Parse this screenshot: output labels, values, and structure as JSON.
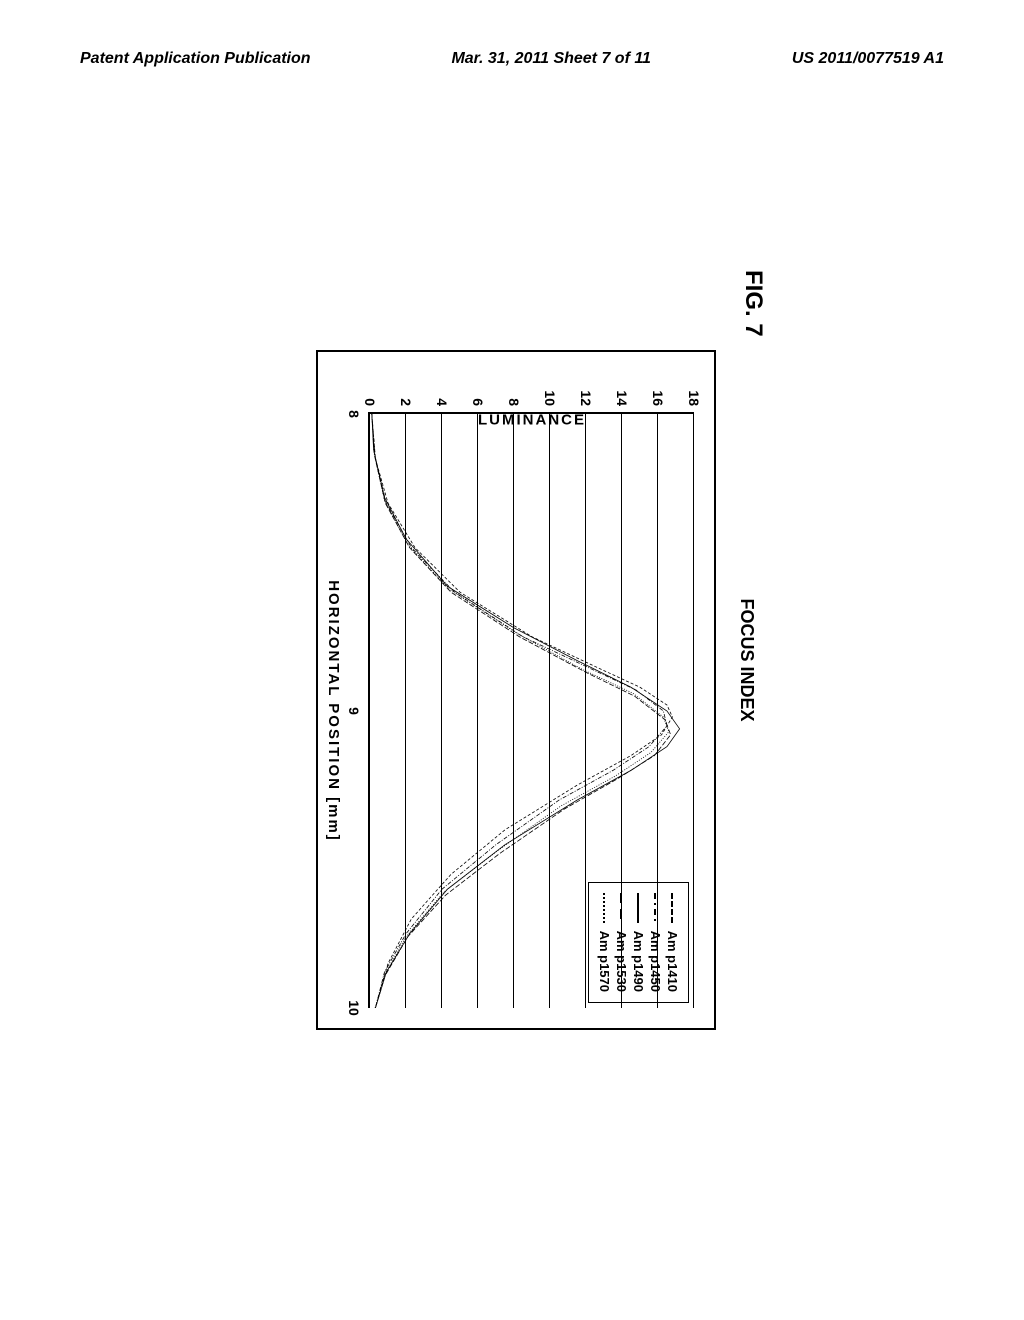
{
  "header": {
    "left": "Patent Application Publication",
    "center": "Mar. 31, 2011  Sheet 7 of 11",
    "right": "US 2011/0077519 A1"
  },
  "figure": {
    "label": "FIG. 7",
    "title": "FOCUS INDEX",
    "y_axis_label": "LUMINANCE",
    "x_axis_label": "HORIZONTAL POSITION [mm]",
    "y_ticks": [
      0,
      2,
      4,
      6,
      8,
      10,
      12,
      14,
      16,
      18
    ],
    "y_min": 0,
    "y_max": 18,
    "x_ticks": [
      8,
      9,
      10
    ],
    "x_min": 8,
    "x_max": 10,
    "legend": [
      {
        "label": "Am p1410",
        "style": "dash"
      },
      {
        "label": "Am p1450",
        "style": "dashdot"
      },
      {
        "label": "Am p1490",
        "style": "solid"
      },
      {
        "label": "Am p1530",
        "style": "longdash"
      },
      {
        "label": "Am p1570",
        "style": "dotted"
      }
    ],
    "curves": [
      {
        "style": "dash",
        "points": [
          {
            "x": 8.0,
            "y": 0.1
          },
          {
            "x": 8.15,
            "y": 0.3
          },
          {
            "x": 8.3,
            "y": 1.0
          },
          {
            "x": 8.45,
            "y": 2.5
          },
          {
            "x": 8.6,
            "y": 5.0
          },
          {
            "x": 8.75,
            "y": 9.0
          },
          {
            "x": 8.85,
            "y": 12.5
          },
          {
            "x": 8.92,
            "y": 15.0
          },
          {
            "x": 8.98,
            "y": 16.5
          },
          {
            "x": 9.02,
            "y": 16.8
          },
          {
            "x": 9.08,
            "y": 16.2
          },
          {
            "x": 9.15,
            "y": 14.5
          },
          {
            "x": 9.25,
            "y": 11.5
          },
          {
            "x": 9.4,
            "y": 7.5
          },
          {
            "x": 9.55,
            "y": 4.5
          },
          {
            "x": 9.7,
            "y": 2.3
          },
          {
            "x": 9.85,
            "y": 1.0
          },
          {
            "x": 10.0,
            "y": 0.3
          }
        ]
      },
      {
        "style": "dashdot",
        "points": [
          {
            "x": 8.0,
            "y": 0.1
          },
          {
            "x": 8.15,
            "y": 0.3
          },
          {
            "x": 8.3,
            "y": 0.9
          },
          {
            "x": 8.45,
            "y": 2.3
          },
          {
            "x": 8.6,
            "y": 4.7
          },
          {
            "x": 8.75,
            "y": 8.5
          },
          {
            "x": 8.85,
            "y": 12.0
          },
          {
            "x": 8.93,
            "y": 14.8
          },
          {
            "x": 9.0,
            "y": 16.3
          },
          {
            "x": 9.05,
            "y": 16.5
          },
          {
            "x": 9.12,
            "y": 15.5
          },
          {
            "x": 9.2,
            "y": 13.5
          },
          {
            "x": 9.3,
            "y": 10.5
          },
          {
            "x": 9.45,
            "y": 7.0
          },
          {
            "x": 9.6,
            "y": 4.0
          },
          {
            "x": 9.75,
            "y": 2.0
          },
          {
            "x": 9.88,
            "y": 0.8
          },
          {
            "x": 10.0,
            "y": 0.3
          }
        ]
      },
      {
        "style": "solid",
        "points": [
          {
            "x": 8.0,
            "y": 0.1
          },
          {
            "x": 8.12,
            "y": 0.2
          },
          {
            "x": 8.28,
            "y": 0.8
          },
          {
            "x": 8.42,
            "y": 2.0
          },
          {
            "x": 8.58,
            "y": 4.3
          },
          {
            "x": 8.72,
            "y": 8.0
          },
          {
            "x": 8.83,
            "y": 11.5
          },
          {
            "x": 8.92,
            "y": 14.5
          },
          {
            "x": 9.0,
            "y": 16.5
          },
          {
            "x": 9.06,
            "y": 17.2
          },
          {
            "x": 9.12,
            "y": 16.5
          },
          {
            "x": 9.2,
            "y": 14.5
          },
          {
            "x": 9.3,
            "y": 11.5
          },
          {
            "x": 9.45,
            "y": 7.5
          },
          {
            "x": 9.6,
            "y": 4.3
          },
          {
            "x": 9.75,
            "y": 2.2
          },
          {
            "x": 9.88,
            "y": 0.9
          },
          {
            "x": 10.0,
            "y": 0.3
          }
        ]
      },
      {
        "style": "longdash",
        "points": [
          {
            "x": 8.0,
            "y": 0.1
          },
          {
            "x": 8.14,
            "y": 0.25
          },
          {
            "x": 8.3,
            "y": 0.85
          },
          {
            "x": 8.45,
            "y": 2.2
          },
          {
            "x": 8.6,
            "y": 4.5
          },
          {
            "x": 8.75,
            "y": 8.3
          },
          {
            "x": 8.87,
            "y": 12.0
          },
          {
            "x": 8.95,
            "y": 14.7
          },
          {
            "x": 9.03,
            "y": 16.4
          },
          {
            "x": 9.08,
            "y": 16.7
          },
          {
            "x": 9.15,
            "y": 15.8
          },
          {
            "x": 9.23,
            "y": 13.7
          },
          {
            "x": 9.33,
            "y": 10.8
          },
          {
            "x": 9.48,
            "y": 7.2
          },
          {
            "x": 9.62,
            "y": 4.2
          },
          {
            "x": 9.76,
            "y": 2.1
          },
          {
            "x": 9.89,
            "y": 0.85
          },
          {
            "x": 10.0,
            "y": 0.3
          }
        ]
      },
      {
        "style": "dotted",
        "points": [
          {
            "x": 8.0,
            "y": 0.1
          },
          {
            "x": 8.13,
            "y": 0.22
          },
          {
            "x": 8.29,
            "y": 0.8
          },
          {
            "x": 8.44,
            "y": 2.1
          },
          {
            "x": 8.59,
            "y": 4.4
          },
          {
            "x": 8.74,
            "y": 8.2
          },
          {
            "x": 8.86,
            "y": 11.8
          },
          {
            "x": 8.94,
            "y": 14.6
          },
          {
            "x": 9.02,
            "y": 16.3
          },
          {
            "x": 9.07,
            "y": 16.6
          },
          {
            "x": 9.14,
            "y": 15.6
          },
          {
            "x": 9.22,
            "y": 13.6
          },
          {
            "x": 9.32,
            "y": 10.6
          },
          {
            "x": 9.47,
            "y": 7.1
          },
          {
            "x": 9.61,
            "y": 4.1
          },
          {
            "x": 9.76,
            "y": 2.0
          },
          {
            "x": 9.89,
            "y": 0.8
          },
          {
            "x": 10.0,
            "y": 0.28
          }
        ]
      }
    ],
    "stroke_color": "#000000",
    "stroke_width": 2
  }
}
